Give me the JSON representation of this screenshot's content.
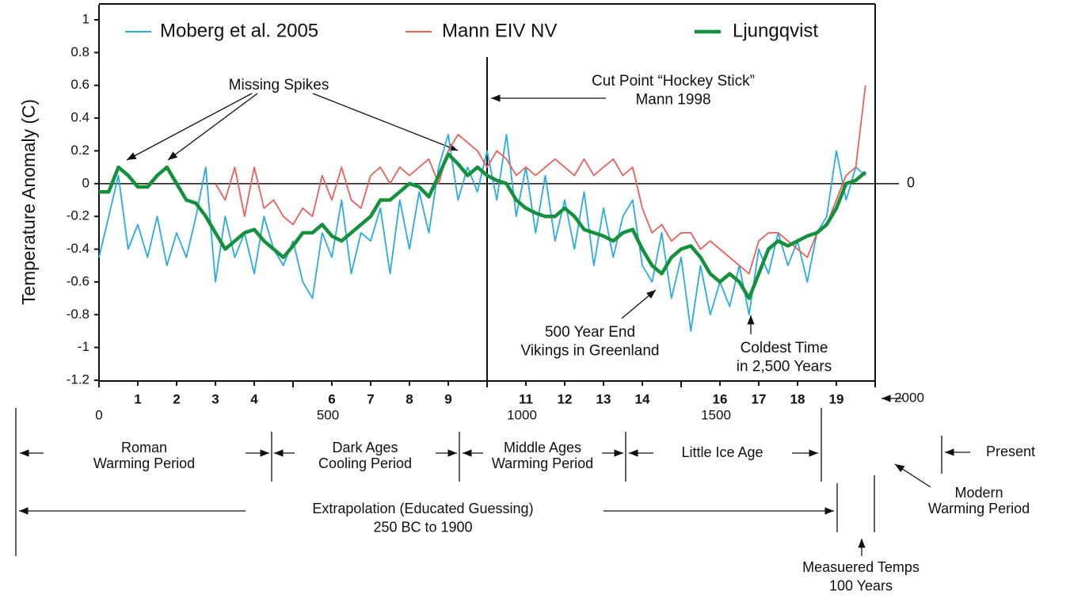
{
  "chart_data": {
    "type": "line",
    "ylabel": "Temperature Anomaly (C)",
    "x": [
      0,
      25,
      50,
      75,
      100,
      125,
      150,
      175,
      200,
      225,
      250,
      275,
      300,
      325,
      350,
      375,
      400,
      425,
      450,
      475,
      500,
      525,
      550,
      575,
      600,
      625,
      650,
      675,
      700,
      725,
      750,
      775,
      800,
      825,
      850,
      875,
      900,
      925,
      950,
      975,
      1000,
      1025,
      1050,
      1075,
      1100,
      1125,
      1150,
      1175,
      1200,
      1225,
      1250,
      1275,
      1300,
      1325,
      1350,
      1375,
      1400,
      1425,
      1450,
      1475,
      1500,
      1525,
      1550,
      1575,
      1600,
      1625,
      1650,
      1675,
      1700,
      1725,
      1750,
      1775,
      1800,
      1825,
      1850,
      1875,
      1900,
      1925,
      1950,
      1975
    ],
    "series": [
      {
        "name": "Moberg et al. 2005",
        "color": "#29abe2",
        "values": [
          -0.45,
          -0.2,
          0.05,
          -0.4,
          -0.25,
          -0.45,
          -0.2,
          -0.5,
          -0.3,
          -0.45,
          -0.2,
          0.1,
          -0.6,
          -0.2,
          -0.45,
          -0.3,
          -0.55,
          -0.2,
          -0.4,
          -0.5,
          -0.35,
          -0.6,
          -0.7,
          -0.3,
          -0.45,
          -0.1,
          -0.55,
          -0.3,
          -0.35,
          -0.15,
          -0.55,
          -0.1,
          -0.4,
          -0.05,
          -0.3,
          0.1,
          0.3,
          -0.1,
          0.1,
          -0.05,
          0.2,
          -0.1,
          0.3,
          -0.2,
          0.1,
          -0.3,
          0.05,
          -0.35,
          -0.1,
          -0.4,
          -0.05,
          -0.5,
          -0.15,
          -0.45,
          -0.2,
          -0.1,
          -0.5,
          -0.6,
          -0.3,
          -0.7,
          -0.45,
          -0.9,
          -0.5,
          -0.8,
          -0.6,
          -0.75,
          -0.5,
          -0.8,
          -0.4,
          -0.55,
          -0.3,
          -0.5,
          -0.35,
          -0.6,
          -0.3,
          -0.2,
          0.2,
          -0.1,
          0.1,
          0.05
        ]
      },
      {
        "name": "Mann EIV NV",
        "color": "#e8605a",
        "values": [
          null,
          null,
          null,
          null,
          null,
          null,
          null,
          null,
          null,
          null,
          null,
          null,
          0.0,
          -0.1,
          0.1,
          -0.2,
          0.1,
          -0.15,
          -0.1,
          -0.2,
          -0.25,
          -0.15,
          -0.2,
          0.05,
          -0.1,
          0.1,
          -0.1,
          -0.15,
          0.05,
          0.1,
          0.0,
          0.1,
          0.05,
          0.1,
          0.15,
          0.0,
          0.2,
          0.3,
          0.25,
          0.2,
          0.1,
          0.2,
          0.15,
          0.05,
          0.1,
          0.05,
          0.1,
          0.15,
          0.1,
          0.05,
          0.15,
          0.05,
          0.1,
          0.15,
          0.05,
          0.1,
          -0.15,
          -0.3,
          -0.25,
          -0.35,
          -0.3,
          -0.3,
          -0.4,
          -0.35,
          -0.4,
          -0.45,
          -0.5,
          -0.55,
          -0.35,
          -0.3,
          -0.3,
          -0.35,
          -0.4,
          -0.45,
          -0.3,
          -0.25,
          -0.1,
          0.05,
          0.1,
          0.6
        ]
      },
      {
        "name": "Ljungqvist",
        "color": "#14913c",
        "values": [
          -0.05,
          -0.05,
          0.1,
          0.05,
          -0.02,
          -0.02,
          0.05,
          0.1,
          0.0,
          -0.1,
          -0.12,
          -0.2,
          -0.3,
          -0.4,
          -0.35,
          -0.3,
          -0.28,
          -0.35,
          -0.4,
          -0.45,
          -0.38,
          -0.3,
          -0.3,
          -0.25,
          -0.32,
          -0.35,
          -0.3,
          -0.25,
          -0.2,
          -0.1,
          -0.1,
          -0.05,
          0.0,
          -0.02,
          -0.08,
          0.05,
          0.18,
          0.12,
          0.05,
          0.1,
          0.05,
          0.02,
          0.0,
          -0.1,
          -0.15,
          -0.18,
          -0.2,
          -0.2,
          -0.15,
          -0.2,
          -0.28,
          -0.3,
          -0.32,
          -0.35,
          -0.3,
          -0.28,
          -0.4,
          -0.5,
          -0.55,
          -0.45,
          -0.4,
          -0.38,
          -0.45,
          -0.55,
          -0.6,
          -0.55,
          -0.6,
          -0.7,
          -0.55,
          -0.4,
          -0.35,
          -0.38,
          -0.35,
          -0.32,
          -0.3,
          -0.25,
          -0.15,
          0.0,
          0.02,
          0.07
        ]
      }
    ],
    "xlim": [
      0,
      2000
    ],
    "ylim": [
      -1.2,
      1
    ],
    "yticks": [
      1,
      0.8,
      0.6,
      0.4,
      0.2,
      0,
      -0.2,
      -0.4,
      -0.6,
      -0.8,
      -1,
      -1.2
    ],
    "xticks": [
      0,
      500,
      1000,
      1500,
      2000
    ],
    "century_ticks": [
      {
        "value": 100,
        "label": "1"
      },
      {
        "value": 200,
        "label": "2"
      },
      {
        "value": 300,
        "label": "3"
      },
      {
        "value": 400,
        "label": "4"
      },
      {
        "value": 600,
        "label": "6"
      },
      {
        "value": 700,
        "label": "7"
      },
      {
        "value": 800,
        "label": "8"
      },
      {
        "value": 900,
        "label": "9"
      },
      {
        "value": 1100,
        "label": "11"
      },
      {
        "value": 1200,
        "label": "12"
      },
      {
        "value": 1300,
        "label": "13"
      },
      {
        "value": 1400,
        "label": "14"
      },
      {
        "value": 1600,
        "label": "16"
      },
      {
        "value": 1700,
        "label": "17"
      },
      {
        "value": 1800,
        "label": "18"
      },
      {
        "value": 1900,
        "label": "19"
      }
    ],
    "zero_label": "0",
    "annotations": [
      [
        "Missing Spikes"
      ],
      [
        "Cut Point “Hockey Stick”",
        "Mann 1998"
      ],
      [
        "500 Year End",
        "Vikings  in Greenland"
      ],
      [
        "Coldest Time",
        "in 2,500 Years"
      ]
    ],
    "periods": [
      [
        "Roman",
        "Warming Period"
      ],
      [
        "Dark Ages",
        "Cooling Period"
      ],
      [
        "Middle Ages",
        "Warming Period"
      ],
      [
        "Little Ice Age"
      ],
      [
        "Present"
      ],
      [
        "Modern",
        "Warming Period"
      ],
      [
        "Extrapolation (Educated Guessing)",
        "250 BC  to 1900"
      ],
      [
        "Measuered Temps",
        "100 Years"
      ]
    ]
  }
}
